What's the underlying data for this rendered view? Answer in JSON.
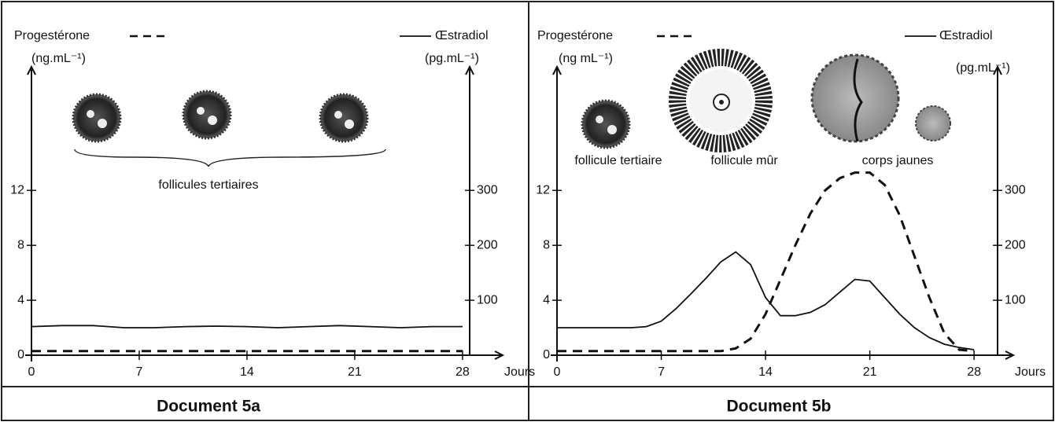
{
  "chart_data": [
    {
      "type": "line",
      "title": "Document 5a",
      "y_label": "Progestérone",
      "y_unit": "(ng.mL⁻¹)",
      "y2_label": "Œstradiol",
      "y2_unit": "(pg.mL⁻¹)",
      "x_label": "Jours",
      "annotations": [
        "follicules tertiaires"
      ],
      "x": [
        0,
        2,
        4,
        6,
        8,
        10,
        12,
        14,
        16,
        18,
        20,
        22,
        24,
        26,
        28
      ],
      "xlim": [
        0,
        30
      ],
      "xticks": [
        0,
        7,
        14,
        21,
        28
      ],
      "ylim": [
        0,
        21
      ],
      "yticks": [
        0,
        4,
        8,
        12
      ],
      "y2lim": [
        0,
        525
      ],
      "y2ticks": [
        100,
        200,
        300
      ],
      "series": [
        {
          "name": "Progestérone",
          "color": "#111111",
          "dash": true,
          "axis": "y",
          "values": [
            0.3,
            0.3,
            0.3,
            0.3,
            0.3,
            0.3,
            0.3,
            0.3,
            0.3,
            0.3,
            0.3,
            0.3,
            0.3,
            0.3,
            0.3
          ]
        },
        {
          "name": "Œstradiol",
          "color": "#111111",
          "dash": false,
          "axis": "y2",
          "values": [
            52,
            54,
            54,
            50,
            50,
            52,
            53,
            52,
            50,
            52,
            54,
            52,
            50,
            52,
            52
          ]
        }
      ]
    },
    {
      "type": "line",
      "title": "Document 5b",
      "y_label": "Progestérone",
      "y_unit": "(ng mL⁻¹)",
      "y2_label": "Œstradiol",
      "y2_unit": "(pg.mL⁻¹)",
      "x_label": "Jours",
      "annotations": [
        "follicule tertiaire",
        "follicule mûr",
        "corps jaunes"
      ],
      "x": [
        0,
        1,
        2,
        3,
        4,
        5,
        6,
        7,
        8,
        9,
        10,
        11,
        12,
        13,
        14,
        15,
        16,
        17,
        18,
        19,
        20,
        21,
        22,
        23,
        24,
        25,
        26,
        27,
        28
      ],
      "xlim": [
        0,
        30
      ],
      "xticks": [
        0,
        7,
        14,
        21,
        28
      ],
      "ylim": [
        0,
        21
      ],
      "yticks": [
        0,
        4,
        8,
        12
      ],
      "y2lim": [
        0,
        525
      ],
      "y2ticks": [
        100,
        200,
        300
      ],
      "series": [
        {
          "name": "Progestérone",
          "color": "#111111",
          "dash": true,
          "axis": "y",
          "values": [
            0.3,
            0.3,
            0.3,
            0.3,
            0.3,
            0.3,
            0.3,
            0.3,
            0.3,
            0.3,
            0.3,
            0.3,
            0.5,
            1.2,
            3,
            5.5,
            8,
            10.3,
            12,
            12.9,
            13.3,
            13.3,
            12.4,
            10.2,
            7.2,
            4.2,
            1.6,
            0.4,
            0.3
          ]
        },
        {
          "name": "Œstradiol",
          "color": "#111111",
          "dash": false,
          "axis": "y2",
          "values": [
            50,
            50,
            50,
            50,
            50,
            50,
            52,
            62,
            85,
            112,
            140,
            170,
            188,
            165,
            105,
            72,
            72,
            78,
            92,
            115,
            138,
            135,
            105,
            75,
            50,
            32,
            20,
            14,
            10
          ]
        }
      ]
    }
  ]
}
